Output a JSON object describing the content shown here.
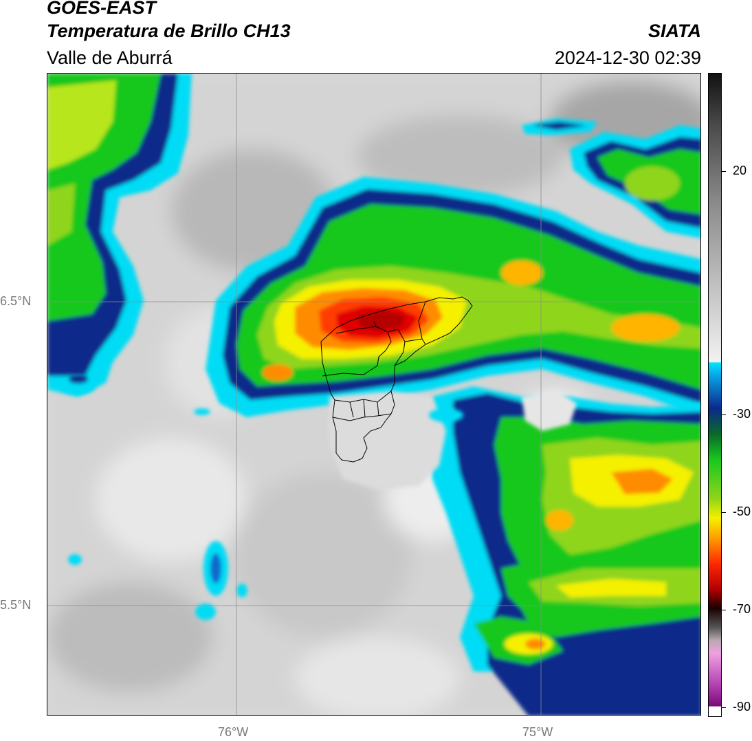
{
  "header": {
    "satellite": "GOES-EAST",
    "product": "Temperatura de Brillo CH13",
    "region": "Valle de Aburrá",
    "agency": "SIATA",
    "datetime": "2024-12-30 02:39"
  },
  "map": {
    "lon_range": [
      -76.62,
      -74.47
    ],
    "lat_range": [
      5.13,
      7.25
    ],
    "lat_ticks": [
      {
        "value": 6.5,
        "label": "6.5°N"
      },
      {
        "value": 5.5,
        "label": "5.5°N"
      }
    ],
    "lon_ticks": [
      {
        "value": -76,
        "label": "76°W"
      },
      {
        "value": -75,
        "label": "75°W"
      }
    ],
    "overlay": "municipal boundaries of Valle de Aburrá"
  },
  "colorbar": {
    "range": [
      -90,
      40
    ],
    "ticks": [
      {
        "value": 20,
        "label": "20"
      },
      {
        "value": -30,
        "label": "-30"
      },
      {
        "value": -50,
        "label": "-50"
      },
      {
        "value": -70,
        "label": "-70"
      },
      {
        "value": -90,
        "label": "-90"
      }
    ]
  },
  "colors": {
    "warm_gray": "#d0d0d0",
    "cyan": "#00e5ff",
    "dark_blue": "#0a2a8a",
    "green": "#19c81e",
    "yellow": "#f5f000",
    "orange": "#ff8c00",
    "red": "#e00000"
  }
}
